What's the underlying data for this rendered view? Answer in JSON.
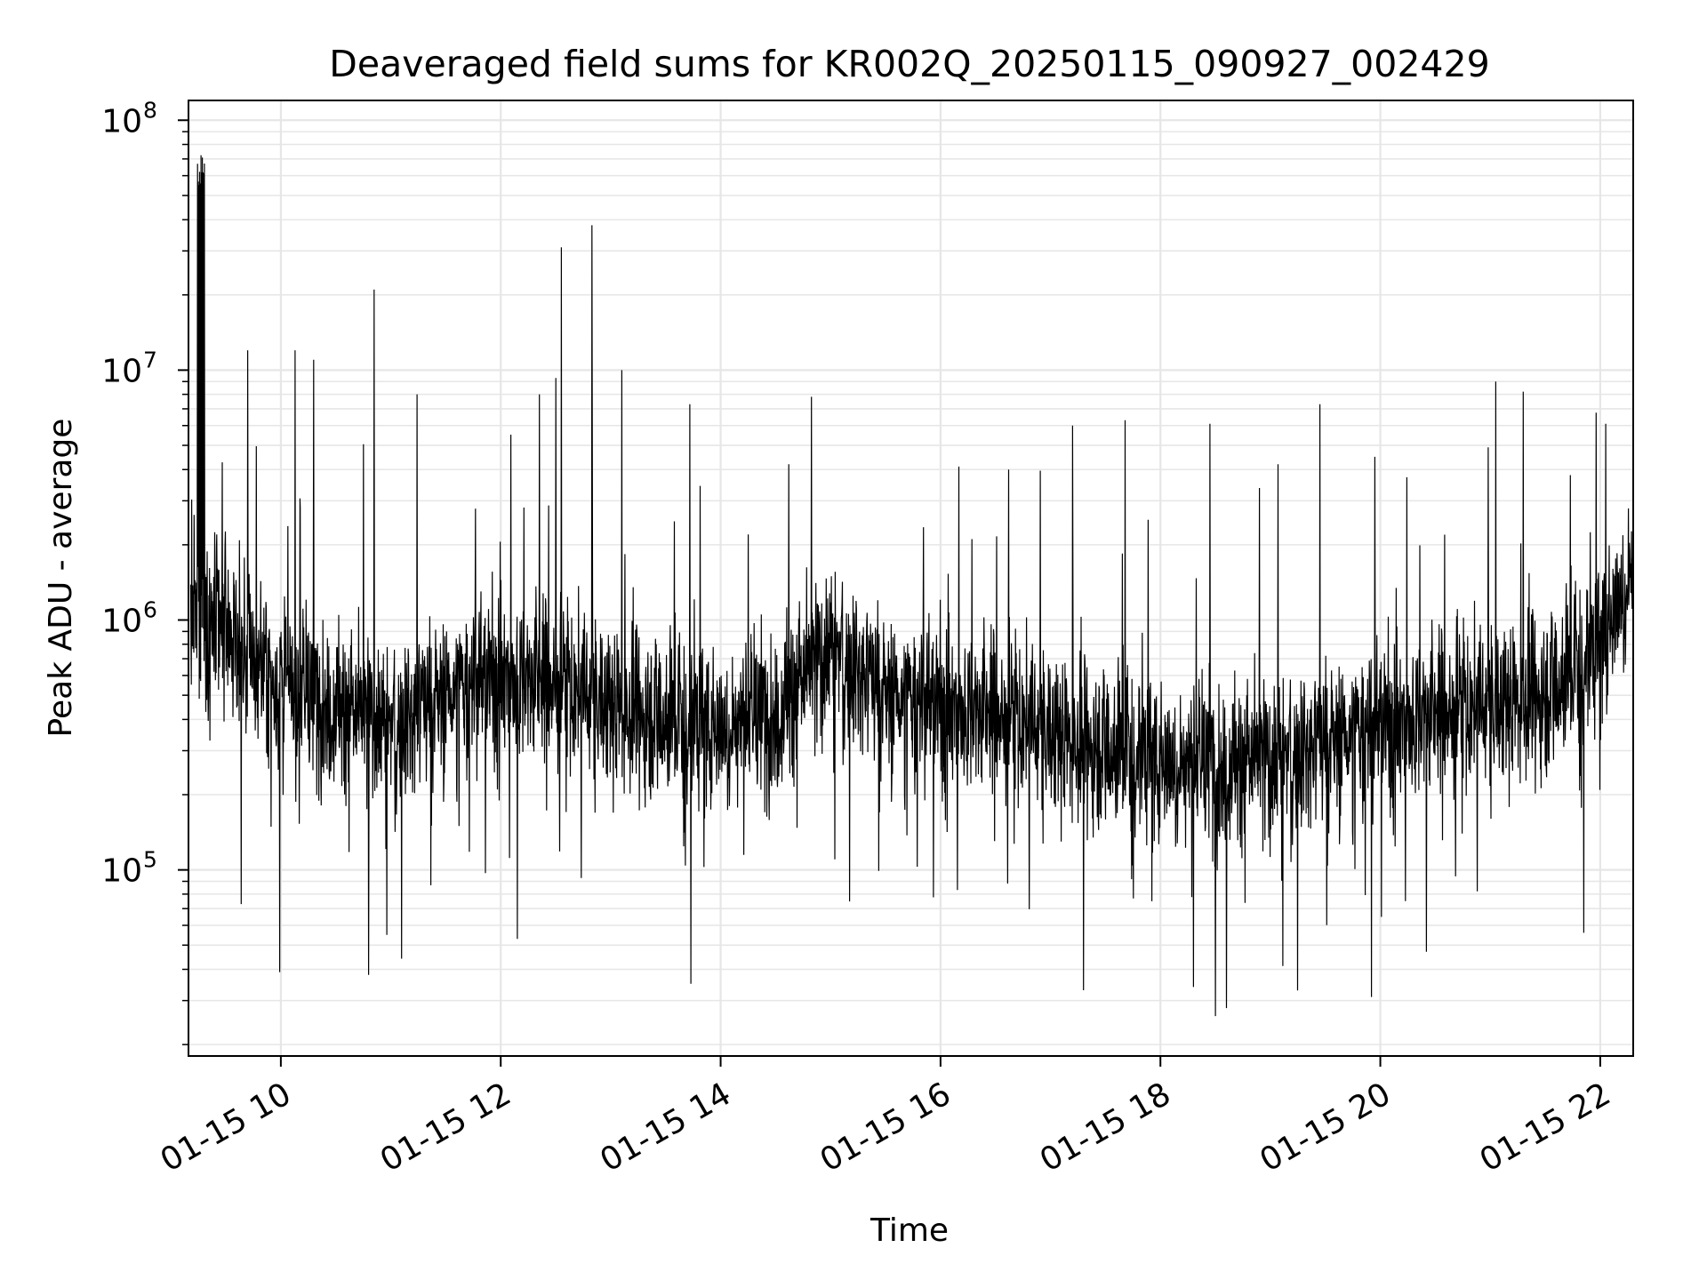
{
  "chart_data": {
    "type": "line",
    "title": "Deaveraged field sums for KR002Q_20250115_090927_002429",
    "xlabel": "Time",
    "ylabel": "Peak ADU - average",
    "yscale": "log",
    "ylim": [
      18000,
      120000000
    ],
    "xlim_hours": [
      9.16,
      22.3
    ],
    "grid": true,
    "line_color": "#000000",
    "grid_color": "#e6e6e6",
    "x_ticks": [
      {
        "hour": 10,
        "label": "01-15 10"
      },
      {
        "hour": 12,
        "label": "01-15 12"
      },
      {
        "hour": 14,
        "label": "01-15 14"
      },
      {
        "hour": 16,
        "label": "01-15 16"
      },
      {
        "hour": 18,
        "label": "01-15 18"
      },
      {
        "hour": 20,
        "label": "01-15 20"
      },
      {
        "hour": 22,
        "label": "01-15 22"
      }
    ],
    "y_ticks": [
      {
        "value": 100000,
        "base": "10",
        "exp": "5"
      },
      {
        "value": 1000000,
        "base": "10",
        "exp": "6"
      },
      {
        "value": 10000000,
        "base": "10",
        "exp": "7"
      },
      {
        "value": 100000000,
        "base": "10",
        "exp": "8"
      }
    ],
    "series": [
      {
        "name": "Peak ADU - average",
        "baseline": {
          "hours": [
            9.16,
            9.5,
            10.0,
            10.5,
            11.0,
            11.5,
            12.0,
            12.5,
            13.0,
            13.5,
            14.0,
            14.5,
            15.0,
            15.5,
            16.0,
            16.5,
            17.0,
            17.5,
            18.0,
            18.5,
            19.0,
            19.5,
            20.0,
            20.5,
            21.0,
            21.5,
            22.0,
            22.3
          ],
          "median": [
            1000000,
            900000,
            550000,
            450000,
            380000,
            500000,
            600000,
            550000,
            450000,
            420000,
            380000,
            420000,
            800000,
            500000,
            450000,
            420000,
            350000,
            320000,
            280000,
            260000,
            280000,
            320000,
            380000,
            420000,
            450000,
            520000,
            800000,
            1700000
          ]
        },
        "spikes": [
          {
            "hour": 9.25,
            "value": 60000000
          },
          {
            "hour": 9.28,
            "value": 70000000
          },
          {
            "hour": 9.3,
            "value": 80000000
          },
          {
            "hour": 9.7,
            "value": 12000000
          },
          {
            "hour": 10.13,
            "value": 12000000
          },
          {
            "hour": 10.3,
            "value": 11000000
          },
          {
            "hour": 10.85,
            "value": 21000000
          },
          {
            "hour": 11.24,
            "value": 8000000
          },
          {
            "hour": 12.35,
            "value": 8000000
          },
          {
            "hour": 12.5,
            "value": 9300000
          },
          {
            "hour": 12.55,
            "value": 31000000
          },
          {
            "hour": 12.83,
            "value": 38000000
          },
          {
            "hour": 13.1,
            "value": 10000000
          },
          {
            "hour": 13.72,
            "value": 7300000
          },
          {
            "hour": 14.62,
            "value": 4200000
          },
          {
            "hour": 16.62,
            "value": 4000000
          },
          {
            "hour": 17.2,
            "value": 6000000
          },
          {
            "hour": 17.68,
            "value": 6300000
          },
          {
            "hour": 18.45,
            "value": 6100000
          },
          {
            "hour": 19.07,
            "value": 4200000
          },
          {
            "hour": 19.45,
            "value": 7300000
          },
          {
            "hour": 19.95,
            "value": 4500000
          },
          {
            "hour": 21.05,
            "value": 9000000
          },
          {
            "hour": 21.3,
            "value": 8200000
          },
          {
            "hour": 22.05,
            "value": 6100000
          }
        ],
        "dips": [
          {
            "hour": 9.64,
            "value": 73000
          },
          {
            "hour": 9.99,
            "value": 39000
          },
          {
            "hour": 10.8,
            "value": 38000
          },
          {
            "hour": 12.15,
            "value": 53000
          },
          {
            "hour": 13.73,
            "value": 35000
          },
          {
            "hour": 17.3,
            "value": 33000
          },
          {
            "hour": 18.3,
            "value": 34000
          },
          {
            "hour": 18.5,
            "value": 26000
          },
          {
            "hour": 18.6,
            "value": 28000
          },
          {
            "hour": 19.92,
            "value": 31000
          },
          {
            "hour": 20.42,
            "value": 47000
          },
          {
            "hour": 21.85,
            "value": 56000
          }
        ]
      }
    ]
  }
}
